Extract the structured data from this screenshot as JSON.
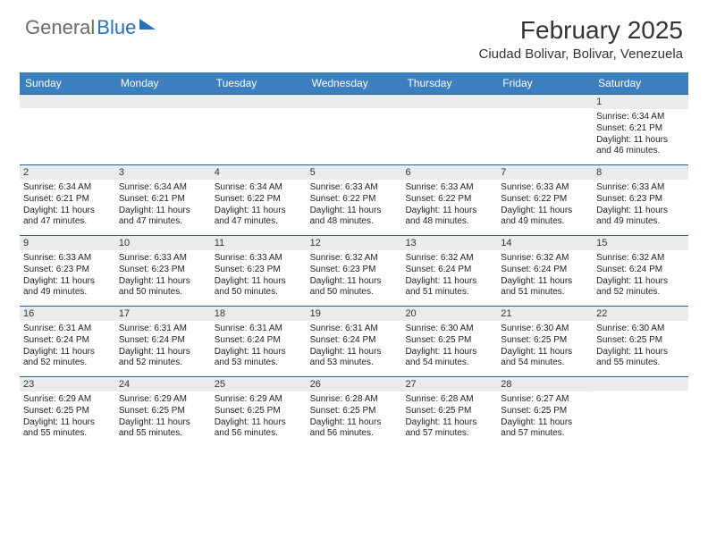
{
  "logo": {
    "text_gray": "General",
    "text_blue": "Blue"
  },
  "title": "February 2025",
  "location": "Ciudad Bolivar, Bolivar, Venezuela",
  "colors": {
    "header_bg": "#3b7fbf",
    "header_text": "#ffffff",
    "daynum_bg": "#e9ebec",
    "row_border": "#2f5e8a",
    "logo_gray": "#6b6b6b",
    "logo_blue": "#2a71b8",
    "body_text": "#222222",
    "title_text": "#333333"
  },
  "day_headers": [
    "Sunday",
    "Monday",
    "Tuesday",
    "Wednesday",
    "Thursday",
    "Friday",
    "Saturday"
  ],
  "weeks": [
    [
      {
        "num": "",
        "lines": [
          "",
          "",
          "",
          ""
        ]
      },
      {
        "num": "",
        "lines": [
          "",
          "",
          "",
          ""
        ]
      },
      {
        "num": "",
        "lines": [
          "",
          "",
          "",
          ""
        ]
      },
      {
        "num": "",
        "lines": [
          "",
          "",
          "",
          ""
        ]
      },
      {
        "num": "",
        "lines": [
          "",
          "",
          "",
          ""
        ]
      },
      {
        "num": "",
        "lines": [
          "",
          "",
          "",
          ""
        ]
      },
      {
        "num": "1",
        "lines": [
          "Sunrise: 6:34 AM",
          "Sunset: 6:21 PM",
          "Daylight: 11 hours",
          "and 46 minutes."
        ]
      }
    ],
    [
      {
        "num": "2",
        "lines": [
          "Sunrise: 6:34 AM",
          "Sunset: 6:21 PM",
          "Daylight: 11 hours",
          "and 47 minutes."
        ]
      },
      {
        "num": "3",
        "lines": [
          "Sunrise: 6:34 AM",
          "Sunset: 6:21 PM",
          "Daylight: 11 hours",
          "and 47 minutes."
        ]
      },
      {
        "num": "4",
        "lines": [
          "Sunrise: 6:34 AM",
          "Sunset: 6:22 PM",
          "Daylight: 11 hours",
          "and 47 minutes."
        ]
      },
      {
        "num": "5",
        "lines": [
          "Sunrise: 6:33 AM",
          "Sunset: 6:22 PM",
          "Daylight: 11 hours",
          "and 48 minutes."
        ]
      },
      {
        "num": "6",
        "lines": [
          "Sunrise: 6:33 AM",
          "Sunset: 6:22 PM",
          "Daylight: 11 hours",
          "and 48 minutes."
        ]
      },
      {
        "num": "7",
        "lines": [
          "Sunrise: 6:33 AM",
          "Sunset: 6:22 PM",
          "Daylight: 11 hours",
          "and 49 minutes."
        ]
      },
      {
        "num": "8",
        "lines": [
          "Sunrise: 6:33 AM",
          "Sunset: 6:23 PM",
          "Daylight: 11 hours",
          "and 49 minutes."
        ]
      }
    ],
    [
      {
        "num": "9",
        "lines": [
          "Sunrise: 6:33 AM",
          "Sunset: 6:23 PM",
          "Daylight: 11 hours",
          "and 49 minutes."
        ]
      },
      {
        "num": "10",
        "lines": [
          "Sunrise: 6:33 AM",
          "Sunset: 6:23 PM",
          "Daylight: 11 hours",
          "and 50 minutes."
        ]
      },
      {
        "num": "11",
        "lines": [
          "Sunrise: 6:33 AM",
          "Sunset: 6:23 PM",
          "Daylight: 11 hours",
          "and 50 minutes."
        ]
      },
      {
        "num": "12",
        "lines": [
          "Sunrise: 6:32 AM",
          "Sunset: 6:23 PM",
          "Daylight: 11 hours",
          "and 50 minutes."
        ]
      },
      {
        "num": "13",
        "lines": [
          "Sunrise: 6:32 AM",
          "Sunset: 6:24 PM",
          "Daylight: 11 hours",
          "and 51 minutes."
        ]
      },
      {
        "num": "14",
        "lines": [
          "Sunrise: 6:32 AM",
          "Sunset: 6:24 PM",
          "Daylight: 11 hours",
          "and 51 minutes."
        ]
      },
      {
        "num": "15",
        "lines": [
          "Sunrise: 6:32 AM",
          "Sunset: 6:24 PM",
          "Daylight: 11 hours",
          "and 52 minutes."
        ]
      }
    ],
    [
      {
        "num": "16",
        "lines": [
          "Sunrise: 6:31 AM",
          "Sunset: 6:24 PM",
          "Daylight: 11 hours",
          "and 52 minutes."
        ]
      },
      {
        "num": "17",
        "lines": [
          "Sunrise: 6:31 AM",
          "Sunset: 6:24 PM",
          "Daylight: 11 hours",
          "and 52 minutes."
        ]
      },
      {
        "num": "18",
        "lines": [
          "Sunrise: 6:31 AM",
          "Sunset: 6:24 PM",
          "Daylight: 11 hours",
          "and 53 minutes."
        ]
      },
      {
        "num": "19",
        "lines": [
          "Sunrise: 6:31 AM",
          "Sunset: 6:24 PM",
          "Daylight: 11 hours",
          "and 53 minutes."
        ]
      },
      {
        "num": "20",
        "lines": [
          "Sunrise: 6:30 AM",
          "Sunset: 6:25 PM",
          "Daylight: 11 hours",
          "and 54 minutes."
        ]
      },
      {
        "num": "21",
        "lines": [
          "Sunrise: 6:30 AM",
          "Sunset: 6:25 PM",
          "Daylight: 11 hours",
          "and 54 minutes."
        ]
      },
      {
        "num": "22",
        "lines": [
          "Sunrise: 6:30 AM",
          "Sunset: 6:25 PM",
          "Daylight: 11 hours",
          "and 55 minutes."
        ]
      }
    ],
    [
      {
        "num": "23",
        "lines": [
          "Sunrise: 6:29 AM",
          "Sunset: 6:25 PM",
          "Daylight: 11 hours",
          "and 55 minutes."
        ]
      },
      {
        "num": "24",
        "lines": [
          "Sunrise: 6:29 AM",
          "Sunset: 6:25 PM",
          "Daylight: 11 hours",
          "and 55 minutes."
        ]
      },
      {
        "num": "25",
        "lines": [
          "Sunrise: 6:29 AM",
          "Sunset: 6:25 PM",
          "Daylight: 11 hours",
          "and 56 minutes."
        ]
      },
      {
        "num": "26",
        "lines": [
          "Sunrise: 6:28 AM",
          "Sunset: 6:25 PM",
          "Daylight: 11 hours",
          "and 56 minutes."
        ]
      },
      {
        "num": "27",
        "lines": [
          "Sunrise: 6:28 AM",
          "Sunset: 6:25 PM",
          "Daylight: 11 hours",
          "and 57 minutes."
        ]
      },
      {
        "num": "28",
        "lines": [
          "Sunrise: 6:27 AM",
          "Sunset: 6:25 PM",
          "Daylight: 11 hours",
          "and 57 minutes."
        ]
      },
      {
        "num": "",
        "lines": [
          "",
          "",
          "",
          ""
        ]
      }
    ]
  ]
}
